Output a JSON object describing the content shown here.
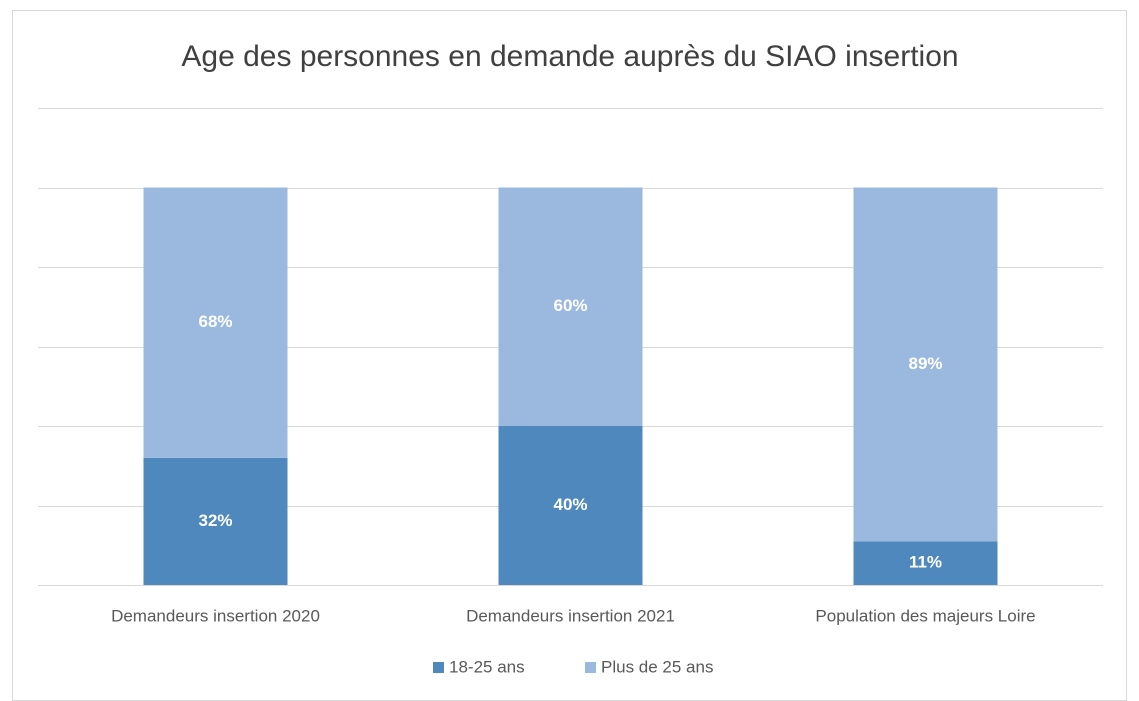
{
  "chart_data": {
    "type": "stacked_bar",
    "title": "Age des personnes en demande auprès du SIAO insertion",
    "categories": [
      "Demandeurs insertion 2020",
      "Demandeurs insertion 2021",
      "Population des majeurs Loire"
    ],
    "series": [
      {
        "name": "18-25 ans",
        "color": "#4f88bc",
        "values": [
          32,
          40,
          11
        ],
        "value_labels": [
          "32%",
          "40%",
          "11%"
        ]
      },
      {
        "name": "Plus de 25 ans",
        "color": "#9bb9df",
        "values": [
          68,
          60,
          89
        ],
        "value_labels": [
          "68%",
          "60%",
          "89%"
        ]
      }
    ],
    "ylim": [
      0,
      120
    ],
    "yticks": [
      0,
      20,
      40,
      60,
      80,
      100,
      120
    ],
    "grid": true,
    "legend": "bottom"
  }
}
